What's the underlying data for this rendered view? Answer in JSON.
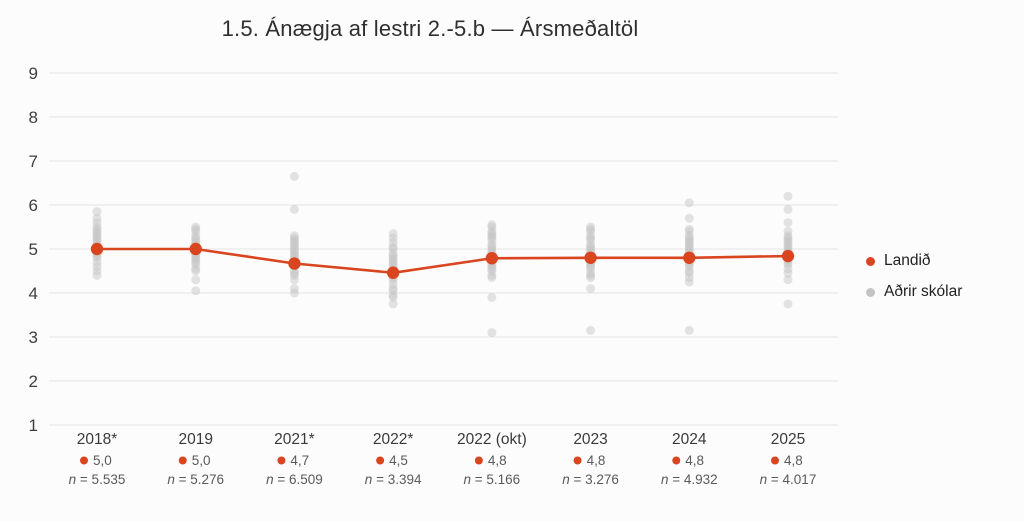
{
  "page": {
    "background": "#fcfcfc",
    "grid_color": "#e4e4e4",
    "tick_label_color": "#3f3f3f",
    "annotation_color": "#5a5a5a",
    "category_label_color": "#3a3a3a"
  },
  "chart_data": {
    "type": "line+scatter",
    "title": "1.5. Ánægja af lestri 2.-5.b — Ársmeðaltöl",
    "grid": true,
    "legend_position": "right",
    "y_axis": {
      "min": 1,
      "max": 9,
      "ticks": [
        1,
        2,
        3,
        4,
        5,
        6,
        7,
        8,
        9
      ]
    },
    "categories": [
      "2018*",
      "2019",
      "2021*",
      "2022*",
      "2022 (okt)",
      "2023",
      "2024",
      "2025"
    ],
    "series": [
      {
        "name": "Landið",
        "type": "line",
        "color": "#d9451f",
        "values": [
          5.0,
          5.0,
          4.67,
          4.46,
          4.79,
          4.8,
          4.8,
          4.84
        ],
        "value_labels": [
          "5,0",
          "5,0",
          "4,7",
          "4,5",
          "4,8",
          "4,8",
          "4,8",
          "4,8"
        ]
      },
      {
        "name": "Aðrir skólar",
        "type": "scatter",
        "color": "#c4c4c4",
        "points_by_category": [
          [
            5.85,
            5.7,
            5.6,
            5.5,
            5.45,
            5.4,
            5.35,
            5.3,
            5.25,
            5.2,
            5.15,
            5.1,
            5.05,
            5.0,
            4.95,
            4.9,
            4.85,
            4.8,
            4.7,
            4.6,
            4.5,
            4.4
          ],
          [
            5.5,
            5.45,
            5.4,
            5.3,
            5.25,
            5.2,
            5.15,
            5.1,
            5.05,
            5.0,
            4.95,
            4.9,
            4.85,
            4.8,
            4.75,
            4.7,
            4.65,
            4.55,
            4.5,
            4.3,
            4.05
          ],
          [
            6.65,
            5.9,
            5.3,
            5.25,
            5.2,
            5.15,
            5.1,
            5.05,
            5.0,
            4.95,
            4.9,
            4.85,
            4.8,
            4.75,
            4.7,
            4.65,
            4.6,
            4.5,
            4.45,
            4.4,
            4.3,
            4.1,
            4.0
          ],
          [
            5.35,
            5.25,
            5.15,
            5.05,
            5.0,
            4.9,
            4.85,
            4.8,
            4.75,
            4.7,
            4.65,
            4.6,
            4.55,
            4.5,
            4.45,
            4.4,
            4.35,
            4.3,
            4.2,
            4.1,
            4.05,
            3.95,
            3.9,
            3.75
          ],
          [
            5.55,
            5.5,
            5.4,
            5.35,
            5.3,
            5.25,
            5.2,
            5.1,
            5.05,
            5.0,
            4.95,
            4.9,
            4.85,
            4.8,
            4.75,
            4.7,
            4.65,
            4.6,
            4.55,
            4.5,
            4.4,
            4.35,
            3.9,
            3.1
          ],
          [
            5.5,
            5.45,
            5.4,
            5.3,
            5.25,
            5.2,
            5.1,
            5.05,
            5.0,
            4.95,
            4.9,
            4.85,
            4.8,
            4.75,
            4.7,
            4.65,
            4.6,
            4.55,
            4.45,
            4.4,
            4.35,
            4.1,
            3.15
          ],
          [
            6.05,
            5.7,
            5.45,
            5.4,
            5.3,
            5.25,
            5.2,
            5.15,
            5.1,
            5.05,
            5.0,
            4.95,
            4.9,
            4.85,
            4.8,
            4.75,
            4.7,
            4.65,
            4.6,
            4.5,
            4.45,
            4.35,
            4.25,
            3.15
          ],
          [
            6.2,
            5.9,
            5.6,
            5.4,
            5.3,
            5.25,
            5.2,
            5.15,
            5.1,
            5.05,
            5.0,
            4.95,
            4.9,
            4.85,
            4.8,
            4.75,
            4.7,
            4.65,
            4.55,
            4.45,
            4.3,
            3.75
          ]
        ]
      }
    ],
    "n_labels": [
      "n = 5.535",
      "n = 5.276",
      "n = 6.509",
      "n = 3.394",
      "n = 5.166",
      "n = 3.276",
      "n = 4.932",
      "n = 4.017"
    ]
  }
}
